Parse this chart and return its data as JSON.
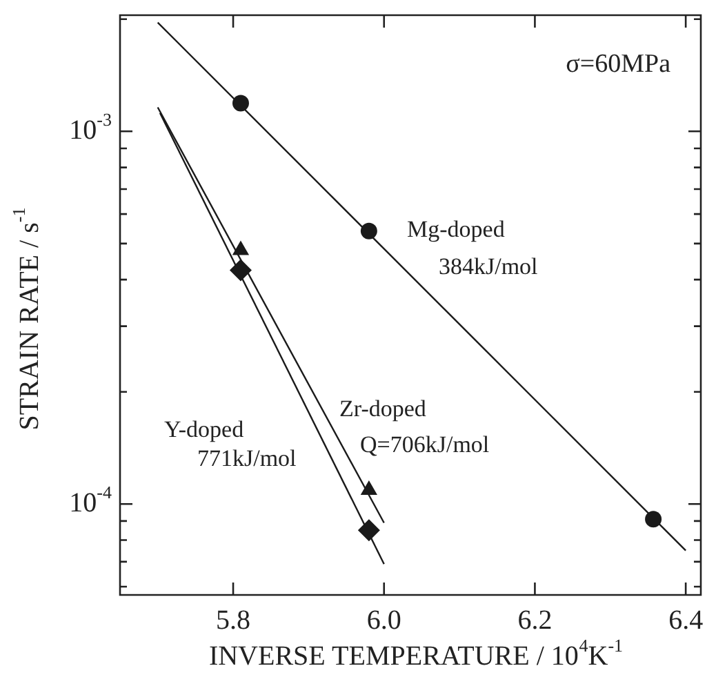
{
  "chart_data": {
    "type": "scatter",
    "xlabel": "INVERSE TEMPERATURE / 10$^{4}$K$^{-1}$",
    "ylabel": "STRAIN RATE / s$^{-1}$",
    "log": "y",
    "grid": false,
    "legend": false,
    "xlim": [
      5.65,
      6.42
    ],
    "xticks": [
      5.8,
      {
        "value": 6,
        "label": "6.0"
      },
      6.2,
      6.4
    ],
    "ylim": [
      5.7e-05,
      0.00205
    ],
    "yticks": [
      {
        "value": 6e-05,
        "label": null
      },
      {
        "value": 7e-05,
        "label": null
      },
      {
        "value": 8e-05,
        "label": null
      },
      {
        "value": 9e-05,
        "label": null
      },
      {
        "value": 0.0001,
        "label": "10$^{-4}$"
      },
      {
        "value": 0.0002,
        "label": null
      },
      {
        "value": 0.0003,
        "label": null
      },
      {
        "value": 0.0004,
        "label": null
      },
      {
        "value": 0.0005,
        "label": null
      },
      {
        "value": 0.0006,
        "label": null
      },
      {
        "value": 0.0007,
        "label": null
      },
      {
        "value": 0.0008,
        "label": null
      },
      {
        "value": 0.0009,
        "label": null
      },
      {
        "value": 0.001,
        "label": "10$^{-3}$"
      },
      {
        "value": 0.002,
        "label": null
      }
    ],
    "series": [
      {
        "marker": "circle",
        "color": "#1a1a1a",
        "x": [
          5.81,
          5.98,
          6.357
        ],
        "values": [
          0.00119,
          0.00054,
          9.1e-05
        ]
      },
      {
        "marker": "triangle",
        "color": "#1a1a1a",
        "x": [
          5.81,
          5.98
        ],
        "values": [
          0.00048,
          0.000109
        ]
      },
      {
        "marker": "diamond",
        "color": "#1a1a1a",
        "x": [
          5.81,
          5.98
        ],
        "values": [
          0.000424,
          8.5e-05
        ]
      },
      {
        "type": "line",
        "marker": "none",
        "color": "#1a1a1a",
        "x": [
          5.7,
          6.4
        ],
        "values": [
          0.00196,
          7.5e-05
        ]
      },
      {
        "type": "line",
        "marker": "none",
        "color": "#1a1a1a",
        "x": [
          5.7,
          6.0
        ],
        "values": [
          0.00116,
          8.9e-05
        ]
      },
      {
        "type": "line",
        "marker": "none",
        "color": "#1a1a1a",
        "x": [
          5.703,
          6.0
        ],
        "values": [
          0.00112,
          6.9e-05
        ]
      }
    ],
    "annotations": [
      "σ=60MPa",
      "Mg-doped",
      "384kJ/mol",
      "Zr-doped",
      "Q=706kJ/mol",
      "Y-doped",
      "771kJ/mol"
    ]
  }
}
